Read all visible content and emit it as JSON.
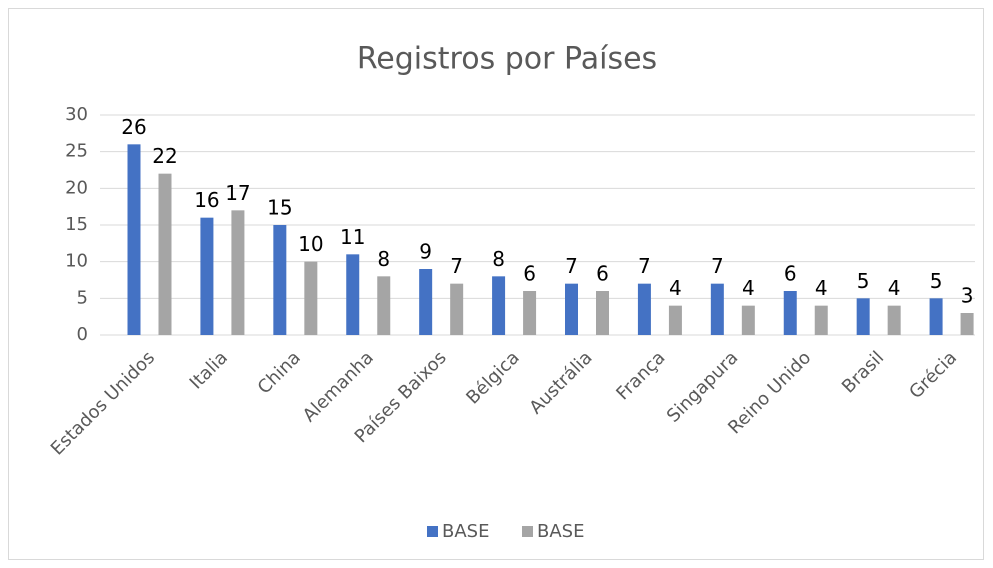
{
  "chart_data": {
    "type": "bar",
    "title": "Registros por Países",
    "categories": [
      "Estados Unidos",
      "Italia",
      "China",
      "Alemanha",
      "Países Baixos",
      "Bélgica",
      "Austrália",
      "França",
      "Singapura",
      "Reino Unido",
      "Brasil",
      "Grécia"
    ],
    "series": [
      {
        "name": "BASE",
        "color": "#4472c4",
        "values": [
          26,
          16,
          15,
          11,
          9,
          8,
          7,
          7,
          7,
          6,
          5,
          5
        ]
      },
      {
        "name": "BASE",
        "color": "#a5a5a5",
        "values": [
          22,
          17,
          10,
          8,
          7,
          6,
          6,
          4,
          4,
          4,
          4,
          3
        ]
      }
    ],
    "ylim": [
      0,
      30
    ],
    "yticks": [
      0,
      5,
      10,
      15,
      20,
      25,
      30
    ],
    "grid": true,
    "legend": "bottom"
  }
}
